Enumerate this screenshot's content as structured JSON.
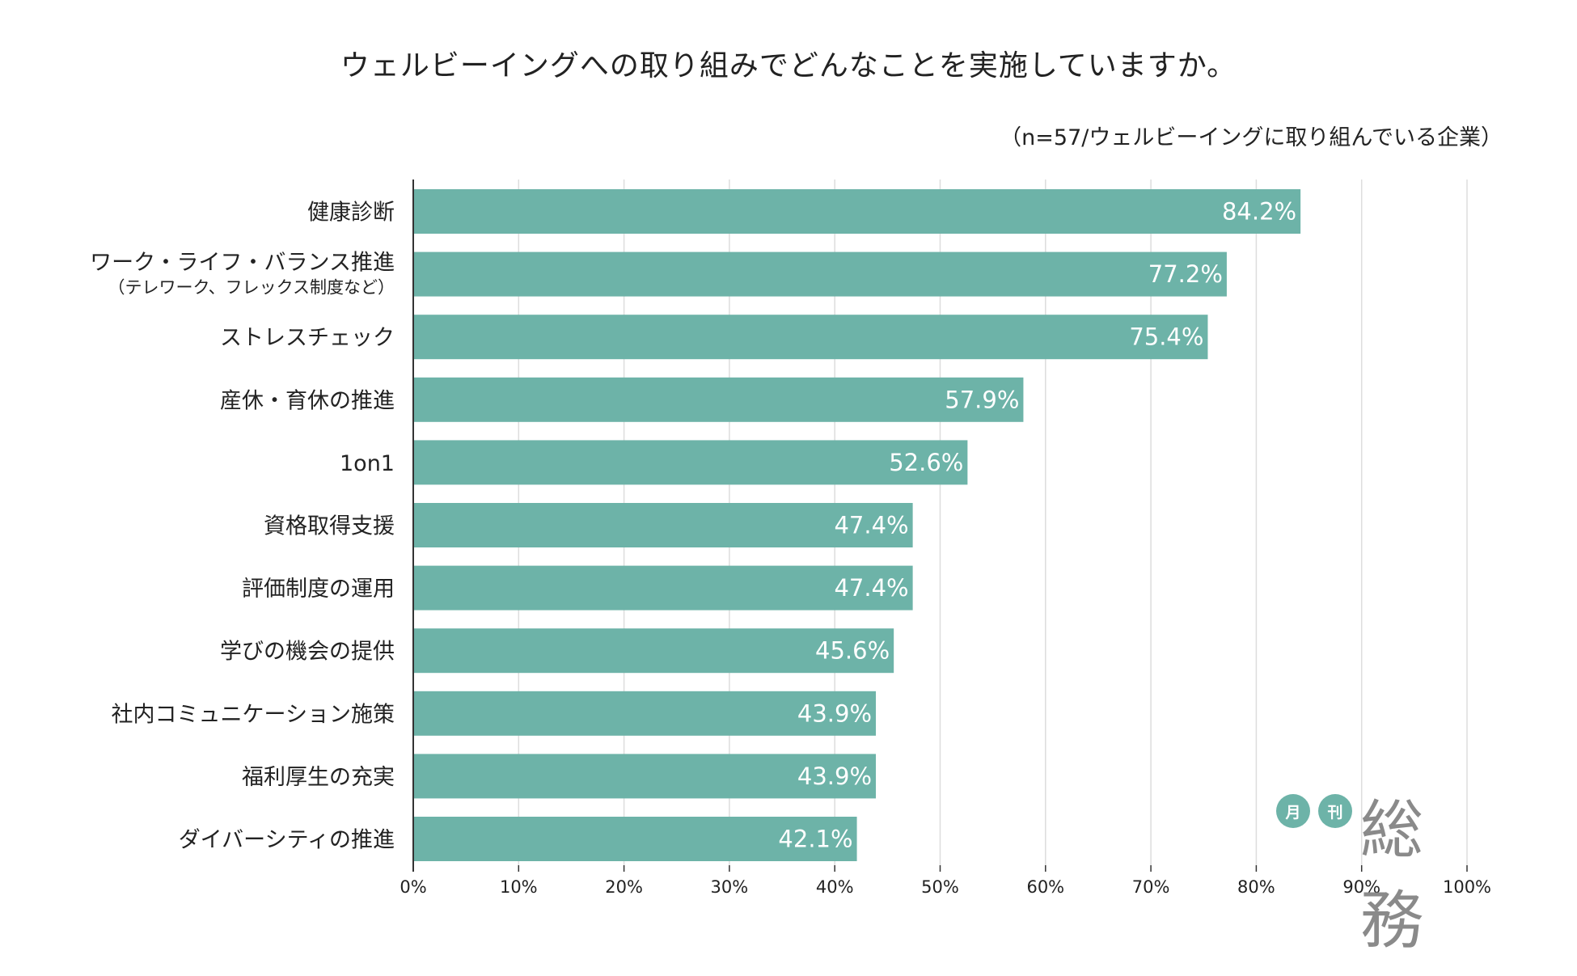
{
  "chart_data": {
    "type": "bar",
    "orientation": "horizontal",
    "title": "ウェルビーイングへの取り組みでどんなことを実施していますか。",
    "subtitle": "（n=57/ウェルビーイングに取り組んでいる企業）",
    "categories": [
      {
        "label": "健康診断",
        "sublabel": ""
      },
      {
        "label": "ワーク・ライフ・バランス推進",
        "sublabel": "（テレワーク、フレックス制度など）"
      },
      {
        "label": "ストレスチェック",
        "sublabel": ""
      },
      {
        "label": "産休・育休の推進",
        "sublabel": ""
      },
      {
        "label": "1on1",
        "sublabel": ""
      },
      {
        "label": "資格取得支援",
        "sublabel": ""
      },
      {
        "label": "評価制度の運用",
        "sublabel": ""
      },
      {
        "label": "学びの機会の提供",
        "sublabel": ""
      },
      {
        "label": "社内コミュニケーション施策",
        "sublabel": ""
      },
      {
        "label": "福利厚生の充実",
        "sublabel": ""
      },
      {
        "label": "ダイバーシティの推進",
        "sublabel": ""
      }
    ],
    "values": [
      84.2,
      77.2,
      75.4,
      57.9,
      52.6,
      47.4,
      47.4,
      45.6,
      43.9,
      43.9,
      42.1
    ],
    "value_labels": [
      "84.2%",
      "77.2%",
      "75.4%",
      "57.9%",
      "52.6%",
      "47.4%",
      "47.4%",
      "45.6%",
      "43.9%",
      "43.9%",
      "42.1%"
    ],
    "xlim": [
      0,
      100
    ],
    "xticks": [
      0,
      10,
      20,
      30,
      40,
      50,
      60,
      70,
      80,
      90,
      100
    ],
    "xtick_labels": [
      "0%",
      "10%",
      "20%",
      "30%",
      "40%",
      "50%",
      "60%",
      "70%",
      "80%",
      "90%",
      "100%"
    ],
    "grid": "vertical",
    "bar_color": "#6db3a8",
    "grid_color": "#dddddd"
  },
  "logo": {
    "circle1": "月",
    "circle2": "刊",
    "word": "総務",
    "color": "#6db3a8",
    "word_color": "#8a8a8a"
  }
}
